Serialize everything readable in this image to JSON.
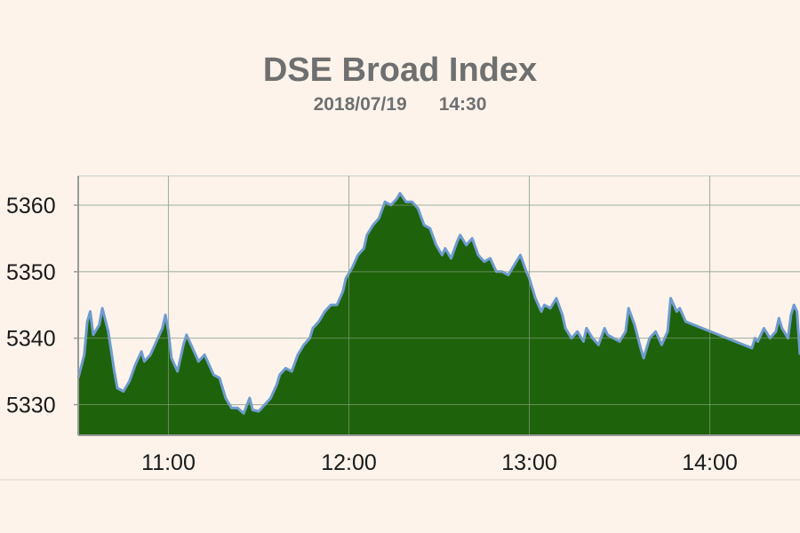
{
  "chart_data": {
    "type": "area",
    "title": "DSE Broad Index",
    "subtitle": {
      "date": "2018/07/19",
      "time": "14:30"
    },
    "x_ticks": [
      "11:00",
      "12:00",
      "13:00",
      "14:00"
    ],
    "y_ticks": [
      5330,
      5340,
      5350,
      5360
    ],
    "xlim": [
      "10:30",
      "14:30"
    ],
    "ylim": [
      5325.4,
      5364.4
    ],
    "grid": true,
    "colors": {
      "fill": "#1f620c",
      "line": "#6f9ccf",
      "grid": "#c8c8c8",
      "text": "#6f6f6f"
    },
    "series": [
      {
        "points": [
          [
            "10:30",
            5334.0
          ],
          [
            "10:32",
            5337.5
          ],
          [
            "10:33",
            5342.5
          ],
          [
            "10:34",
            5344.0
          ],
          [
            "10:35",
            5340.5
          ],
          [
            "10:37",
            5342.0
          ],
          [
            "10:38",
            5344.5
          ],
          [
            "10:40",
            5341.0
          ],
          [
            "10:42",
            5335.0
          ],
          [
            "10:43",
            5332.5
          ],
          [
            "10:45",
            5332.0
          ],
          [
            "10:47",
            5333.5
          ],
          [
            "10:49",
            5336.0
          ],
          [
            "10:51",
            5338.0
          ],
          [
            "10:52",
            5336.5
          ],
          [
            "10:54",
            5337.5
          ],
          [
            "10:56",
            5339.5
          ],
          [
            "10:58",
            5341.5
          ],
          [
            "10:59",
            5343.5
          ],
          [
            "11:00",
            5341.0
          ],
          [
            "11:01",
            5337.0
          ],
          [
            "11:03",
            5335.0
          ],
          [
            "11:05",
            5339.0
          ],
          [
            "11:06",
            5340.5
          ],
          [
            "11:08",
            5338.5
          ],
          [
            "11:10",
            5336.5
          ],
          [
            "11:12",
            5337.5
          ],
          [
            "11:14",
            5335.5
          ],
          [
            "11:15",
            5334.5
          ],
          [
            "11:17",
            5334.0
          ],
          [
            "11:19",
            5331.0
          ],
          [
            "11:21",
            5329.5
          ],
          [
            "11:23",
            5329.5
          ],
          [
            "11:25",
            5328.7
          ],
          [
            "11:27",
            5331.0
          ],
          [
            "11:28",
            5329.2
          ],
          [
            "11:30",
            5329.0
          ],
          [
            "11:32",
            5330.0
          ],
          [
            "11:34",
            5331.0
          ],
          [
            "11:36",
            5333.0
          ],
          [
            "11:37",
            5334.5
          ],
          [
            "11:39",
            5335.5
          ],
          [
            "11:41",
            5335.0
          ],
          [
            "11:43",
            5337.5
          ],
          [
            "11:45",
            5339.0
          ],
          [
            "11:47",
            5340.0
          ],
          [
            "11:48",
            5341.5
          ],
          [
            "11:50",
            5342.5
          ],
          [
            "11:52",
            5344.0
          ],
          [
            "11:54",
            5345.0
          ],
          [
            "11:56",
            5345.0
          ],
          [
            "11:58",
            5347.0
          ],
          [
            "11:59",
            5349.0
          ],
          [
            "12:01",
            5350.5
          ],
          [
            "12:03",
            5352.5
          ],
          [
            "12:05",
            5353.5
          ],
          [
            "12:06",
            5355.5
          ],
          [
            "12:08",
            5357.0
          ],
          [
            "12:10",
            5358.0
          ],
          [
            "12:12",
            5360.5
          ],
          [
            "12:14",
            5360.0
          ],
          [
            "12:16",
            5361.0
          ],
          [
            "12:17",
            5361.8
          ],
          [
            "12:19",
            5360.5
          ],
          [
            "12:21",
            5360.5
          ],
          [
            "12:23",
            5359.5
          ],
          [
            "12:25",
            5357.0
          ],
          [
            "12:27",
            5356.5
          ],
          [
            "12:29",
            5354.0
          ],
          [
            "12:31",
            5352.5
          ],
          [
            "12:32",
            5353.5
          ],
          [
            "12:34",
            5352.0
          ],
          [
            "12:36",
            5354.5
          ],
          [
            "12:37",
            5355.5
          ],
          [
            "12:39",
            5354.0
          ],
          [
            "12:41",
            5355.0
          ],
          [
            "12:43",
            5352.5
          ],
          [
            "12:45",
            5351.5
          ],
          [
            "12:47",
            5352.0
          ],
          [
            "12:49",
            5350.0
          ],
          [
            "12:51",
            5350.0
          ],
          [
            "12:53",
            5349.5
          ],
          [
            "12:55",
            5351.0
          ],
          [
            "12:57",
            5352.5
          ],
          [
            "12:59",
            5350.0
          ],
          [
            "13:00",
            5349.0
          ],
          [
            "13:02",
            5346.0
          ],
          [
            "13:04",
            5344.0
          ],
          [
            "13:05",
            5345.0
          ],
          [
            "13:07",
            5344.5
          ],
          [
            "13:09",
            5346.0
          ],
          [
            "13:11",
            5343.5
          ],
          [
            "13:12",
            5341.5
          ],
          [
            "13:14",
            5340.0
          ],
          [
            "13:16",
            5341.0
          ],
          [
            "13:18",
            5339.5
          ],
          [
            "13:19",
            5341.5
          ],
          [
            "13:21",
            5340.0
          ],
          [
            "13:23",
            5339.0
          ],
          [
            "13:25",
            5341.5
          ],
          [
            "13:26",
            5340.5
          ],
          [
            "13:28",
            5340.0
          ],
          [
            "13:30",
            5339.5
          ],
          [
            "13:32",
            5341.0
          ],
          [
            "13:33",
            5344.5
          ],
          [
            "13:35",
            5342.0
          ],
          [
            "13:37",
            5338.5
          ],
          [
            "13:38",
            5337.0
          ],
          [
            "13:40",
            5340.0
          ],
          [
            "13:42",
            5341.0
          ],
          [
            "13:44",
            5339.0
          ],
          [
            "13:46",
            5341.0
          ],
          [
            "13:47",
            5346.0
          ],
          [
            "13:49",
            5344.0
          ],
          [
            "13:50",
            5344.5
          ],
          [
            "13:52",
            5342.5
          ],
          [
            "14:14",
            5338.5
          ],
          [
            "14:15",
            5340.0
          ],
          [
            "14:16",
            5339.5
          ],
          [
            "14:17",
            5340.5
          ],
          [
            "14:18",
            5341.5
          ],
          [
            "14:20",
            5340.0
          ],
          [
            "14:22",
            5341.0
          ],
          [
            "14:23",
            5343.0
          ],
          [
            "14:24",
            5341.5
          ],
          [
            "14:26",
            5340.0
          ],
          [
            "14:27",
            5343.5
          ],
          [
            "14:28",
            5345.0
          ],
          [
            "14:29",
            5344.0
          ],
          [
            "14:30",
            5337.5
          ]
        ]
      }
    ]
  }
}
